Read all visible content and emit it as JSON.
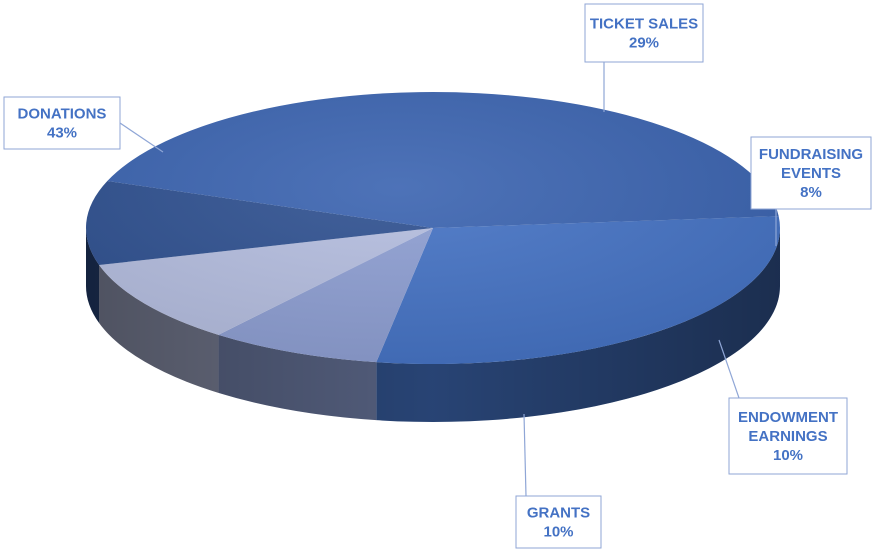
{
  "chart_data": {
    "type": "pie",
    "style": "3d",
    "legend": "none",
    "label_color": "#4472C4",
    "categories": [
      "TICKET SALES",
      "FUNDRAISING EVENTS",
      "ENDOWMENT EARNINGS",
      "GRANTS",
      "DONATIONS"
    ],
    "values": [
      29,
      8,
      10,
      10,
      43
    ],
    "series": [
      {
        "slices": [
          {
            "label": [
              "TICKET SALES"
            ],
            "value": 29,
            "value_label": "29%",
            "color": "#4472C4"
          },
          {
            "label": [
              "FUNDRAISING",
              "EVENTS"
            ],
            "value": 8,
            "value_label": "8%",
            "color": "#8D9ED2"
          },
          {
            "label": [
              "ENDOWMENT",
              "EARNINGS"
            ],
            "value": 10,
            "value_label": "10%",
            "color": "#B4BDDF"
          },
          {
            "label": [
              "GRANTS"
            ],
            "value": 10,
            "value_label": "10%",
            "color": "#2E5090"
          },
          {
            "label": [
              "DONATIONS"
            ],
            "value": 43,
            "value_label": "43%",
            "color": "#3A63B0"
          }
        ]
      }
    ]
  }
}
